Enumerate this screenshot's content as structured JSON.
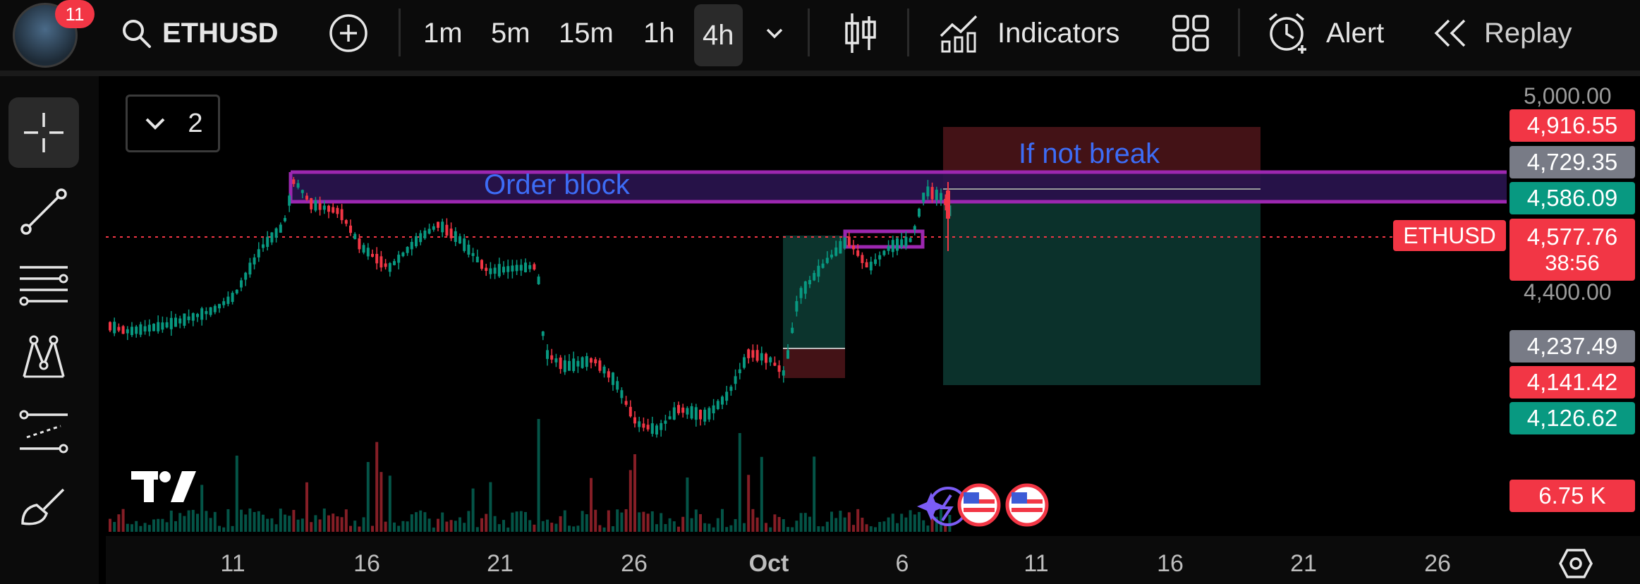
{
  "topbar": {
    "notification_count": "11",
    "symbol": "ETHUSD",
    "timeframes": [
      "1m",
      "5m",
      "15m",
      "1h",
      "4h"
    ],
    "active_timeframe": "4h",
    "indicators_label": "Indicators",
    "alert_label": "Alert",
    "replay_label": "Replay"
  },
  "legend": {
    "count": "2"
  },
  "chart_data": {
    "type": "candlestick",
    "symbol": "ETHUSD",
    "timeframe": "4h",
    "x_ticks": [
      "11",
      "16",
      "21",
      "26",
      "Oct",
      "6",
      "11",
      "16",
      "21",
      "26"
    ],
    "y_ticks": [
      "5,000.00",
      "4,400.00"
    ],
    "annotations": [
      "Order block",
      "If not break"
    ],
    "price_labels": [
      {
        "value": "4,916.55",
        "color": "#f23645"
      },
      {
        "value": "4,729.35",
        "color": "#787b86"
      },
      {
        "value": "4,586.09",
        "color": "#089981"
      },
      {
        "value": "4,577.76",
        "color": "#f23645"
      },
      {
        "value": "4,237.49",
        "color": "#787b86"
      },
      {
        "value": "4,141.42",
        "color": "#f23645"
      },
      {
        "value": "4,126.62",
        "color": "#089981"
      }
    ],
    "current_price": "4,577.76",
    "countdown": "38:56",
    "volume_label": "6.75 K",
    "colors": {
      "up": "#089981",
      "down": "#f23645",
      "order_block": "#9c27b0"
    }
  },
  "icons": [
    "search-icon",
    "add-icon",
    "chevron-down-icon",
    "candles-icon",
    "indicators-icon",
    "layout-icon",
    "alert-icon",
    "replay-icon",
    "crosshair-icon",
    "trendline-icon",
    "fib-icon",
    "pattern-icon",
    "projection-icon",
    "brush-icon",
    "settings-icon",
    "tradingview-logo"
  ]
}
